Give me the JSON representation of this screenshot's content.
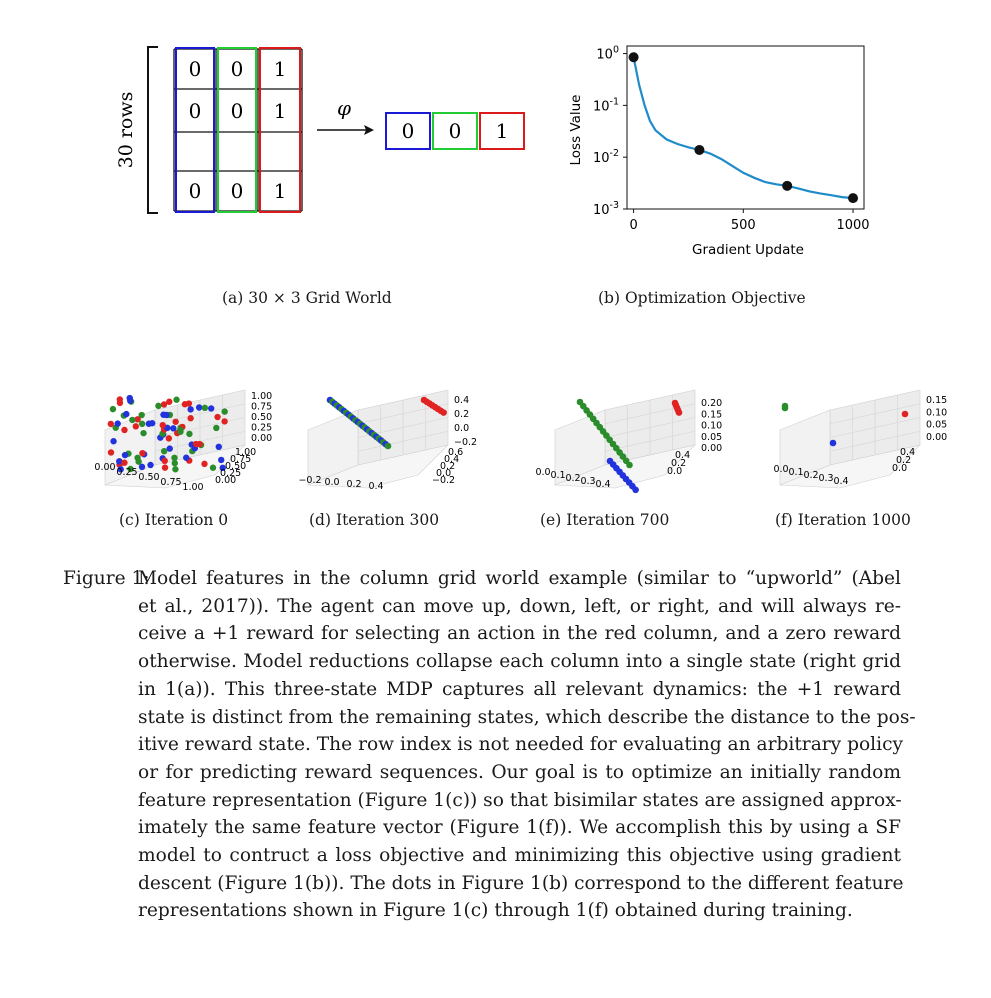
{
  "panel_a": {
    "rows_label": "30 rows",
    "phi": "φ",
    "grid_rows": [
      [
        "0",
        "0",
        "1"
      ],
      [
        "0",
        "0",
        "1"
      ],
      [
        "",
        "",
        ""
      ],
      [
        "0",
        "0",
        "1"
      ]
    ],
    "result_row": [
      "0",
      "0",
      "1"
    ],
    "colors": {
      "blue": "#1a1ad6",
      "green": "#22cc33",
      "red": "#dd1a1a"
    },
    "caption": "(a) 30 × 3 Grid World"
  },
  "panel_b": {
    "caption": "(b) Optimization Objective",
    "chart_data": {
      "type": "line",
      "xlabel": "Gradient Update",
      "ylabel": "Loss Value",
      "yscale": "log",
      "ylim": [
        0.001,
        1.4
      ],
      "xlim": [
        -30,
        1050
      ],
      "xticks": [
        "0",
        "500",
        "1000"
      ],
      "yticks": [
        "10^0",
        "10^-1",
        "10^-2",
        "10^-3"
      ],
      "line_color": "#1f8bc9",
      "line": {
        "x": [
          0,
          25,
          50,
          75,
          100,
          150,
          200,
          250,
          300,
          350,
          400,
          450,
          500,
          550,
          600,
          650,
          700,
          750,
          800,
          850,
          900,
          950,
          1000
        ],
        "y": [
          0.85,
          0.25,
          0.1,
          0.05,
          0.033,
          0.022,
          0.018,
          0.0155,
          0.0138,
          0.0117,
          0.0092,
          0.0068,
          0.005,
          0.004,
          0.0033,
          0.003,
          0.0028,
          0.0025,
          0.0022,
          0.002,
          0.00185,
          0.0017,
          0.00162
        ]
      },
      "markers": {
        "x": [
          0,
          300,
          700,
          1000
        ],
        "y": [
          0.85,
          0.0138,
          0.0028,
          0.00162
        ]
      }
    }
  },
  "panel_c": {
    "caption": "(c) Iteration 0",
    "z_ticks": [
      "1.00",
      "0.75",
      "0.50",
      "0.25",
      "0.00"
    ],
    "x_ticks": [
      "0.00",
      "0.25",
      "0.50",
      "0.75",
      "1.00"
    ],
    "y_ticks": [
      "1.00",
      "0.75",
      "0.50",
      "0.25",
      "0.00"
    ]
  },
  "panel_d": {
    "caption": "(d) Iteration 300",
    "z_ticks": [
      "0.4",
      "0.2",
      "0.0",
      "−0.2"
    ],
    "x_ticks": [
      "−0.2",
      "0.0",
      "0.2",
      "0.4"
    ],
    "y_ticks": [
      "0.6",
      "0.4",
      "0.2",
      "0.0",
      "−0.2"
    ]
  },
  "panel_e": {
    "caption": "(e) Iteration 700",
    "z_ticks": [
      "0.20",
      "0.15",
      "0.10",
      "0.05",
      "0.00"
    ],
    "x_ticks": [
      "0.0",
      "0.1",
      "0.2",
      "0.3",
      "0.4"
    ],
    "y_ticks": [
      "0.4",
      "0.2",
      "0.0"
    ]
  },
  "panel_f": {
    "caption": "(f) Iteration 1000",
    "z_ticks": [
      "0.15",
      "0.10",
      "0.05",
      "0.00"
    ],
    "x_ticks": [
      "0.0",
      "0.1",
      "0.2",
      "0.3",
      "0.4"
    ],
    "y_ticks": [
      "0.4",
      "0.2",
      "0.0"
    ]
  },
  "figure_caption": {
    "label": "Figure 1:",
    "lines": [
      "Model features in the column grid world example (similar to “upworld” (Abel",
      "et al., 2017)). The agent can move up, down, left, or right, and will always re-",
      "ceive a +1 reward for selecting an action in the red column, and a zero reward",
      "otherwise. Model reductions collapse each column into a single state (right grid",
      "in 1(a)). This three-state MDP captures all relevant dynamics: the +1 reward",
      "state is distinct from the remaining states, which describe the distance to the pos-",
      "itive reward state. The row index is not needed for evaluating an arbitrary policy",
      "or for predicting reward sequences. Our goal is to optimize an initially random",
      "feature representation (Figure 1(c)) so that bisimilar states are assigned approx-",
      "imately the same feature vector (Figure 1(f)). We accomplish this by using a SF",
      "model to contruct a loss objective and minimizing this objective using gradient",
      "descent (Figure 1(b)). The dots in Figure 1(b) correspond to the different feature",
      "representations shown in Figure 1(c) through 1(f) obtained during training."
    ]
  }
}
